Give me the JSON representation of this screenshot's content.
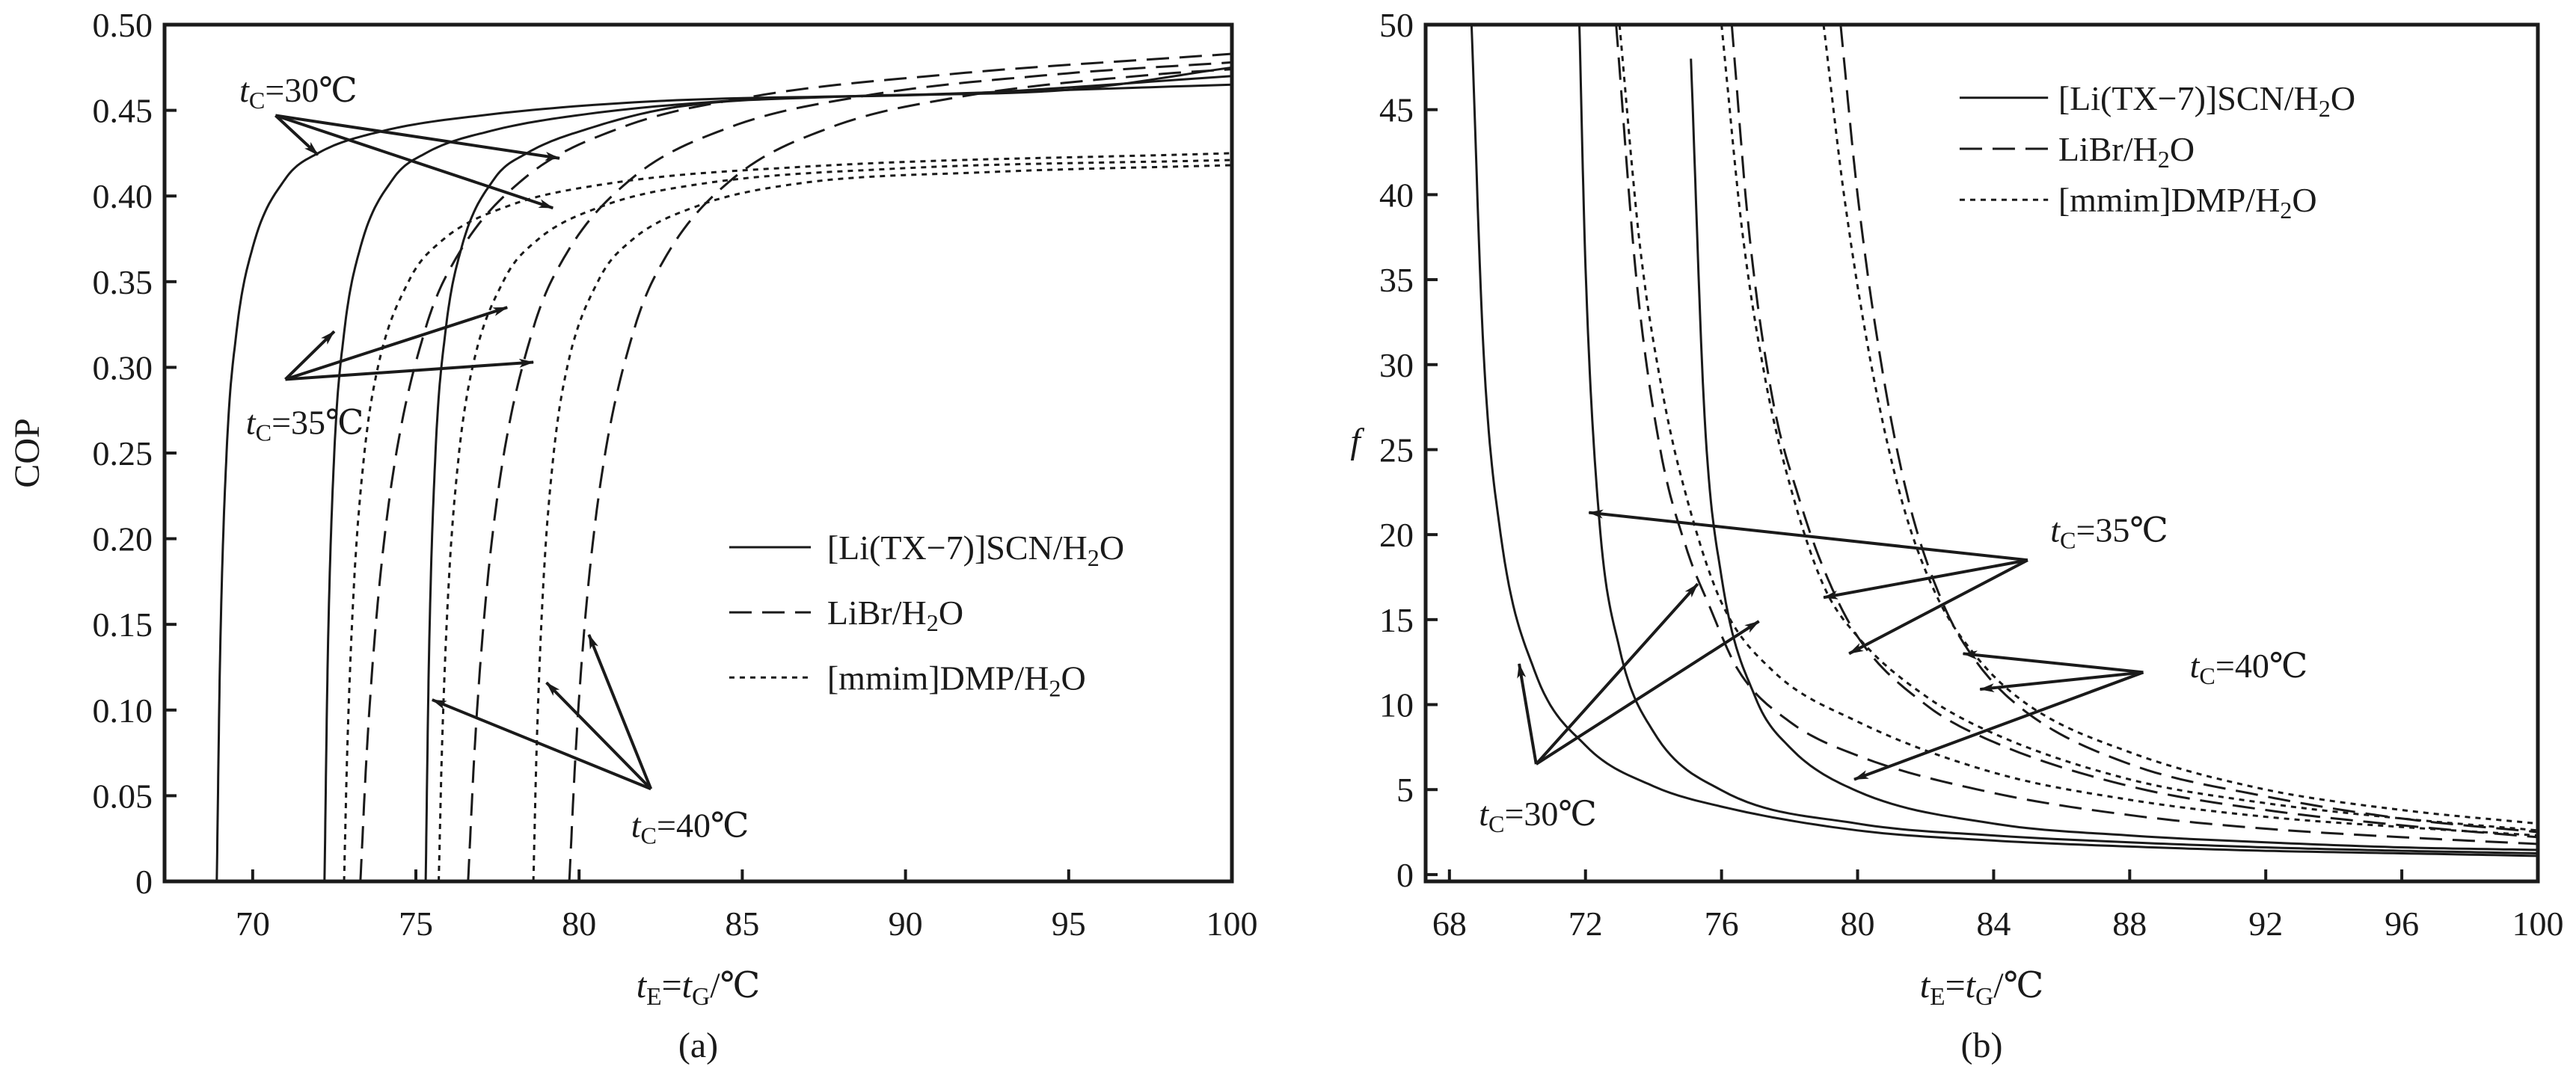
{
  "chart_data": [
    {
      "type": "line",
      "panel_label": "(a)",
      "xlabel": "tE=tG/℃",
      "ylabel": "COP",
      "xlim": [
        67.3,
        100
      ],
      "ylim": [
        0,
        0.5
      ],
      "xticks": [
        70,
        75,
        80,
        85,
        90,
        95,
        100
      ],
      "yticks": [
        0,
        0.05,
        0.1,
        0.15,
        0.2,
        0.25,
        0.3,
        0.35,
        0.4,
        0.45,
        0.5
      ],
      "ytick_labels": [
        "0",
        "0.05",
        "0.10",
        "0.15",
        "0.20",
        "0.25",
        "0.30",
        "0.35",
        "0.40",
        "0.45",
        "0.50"
      ],
      "grid": false,
      "legend_position": "center-right",
      "legend": [
        {
          "label": "[Li(TX−7)]SCN/H2O",
          "style": "solid"
        },
        {
          "label": "LiBr/H2O",
          "style": "dashed"
        },
        {
          "label": "[mmim]DMP/H2O",
          "style": "dotted"
        }
      ],
      "series": [
        {
          "name": "[Li(TX−7)]SCN/H2O tC=30℃",
          "style": "solid",
          "x": [
            68.9,
            69.0,
            69.2,
            69.5,
            70,
            71,
            72,
            74,
            77,
            82,
            90,
            100
          ],
          "y": [
            0,
            0.13,
            0.25,
            0.32,
            0.37,
            0.41,
            0.425,
            0.438,
            0.447,
            0.455,
            0.459,
            0.465
          ]
        },
        {
          "name": "[Li(TX−7)]SCN/H2O tC=35℃",
          "style": "solid",
          "x": [
            72.2,
            72.3,
            72.5,
            72.8,
            73.3,
            74.3,
            75.3,
            77.3,
            80.3,
            85,
            92,
            100
          ],
          "y": [
            0,
            0.13,
            0.25,
            0.32,
            0.37,
            0.41,
            0.425,
            0.438,
            0.448,
            0.456,
            0.46,
            0.47
          ]
        },
        {
          "name": "[Li(TX−7)]SCN/H2O tC=40℃",
          "style": "solid",
          "x": [
            75.3,
            75.4,
            75.6,
            75.9,
            76.4,
            77.4,
            78.4,
            80.4,
            83,
            88,
            95,
            100
          ],
          "y": [
            0,
            0.13,
            0.25,
            0.32,
            0.37,
            0.41,
            0.425,
            0.44,
            0.452,
            0.458,
            0.462,
            0.475
          ]
        },
        {
          "name": "LiBr/H2O tC=30℃",
          "style": "dashed",
          "x": [
            73.3,
            73.5,
            73.8,
            74.3,
            75.3,
            76.3,
            78.3,
            81.3,
            85.3,
            91.3,
            100
          ],
          "y": [
            0,
            0.077,
            0.156,
            0.238,
            0.323,
            0.366,
            0.41,
            0.44,
            0.458,
            0.471,
            0.483
          ]
        },
        {
          "name": "LiBr/H2O tC=35℃",
          "style": "dashed",
          "x": [
            76.6,
            76.8,
            77.1,
            77.6,
            78.6,
            79.6,
            81.6,
            84.6,
            88.6,
            94.6,
            100
          ],
          "y": [
            0,
            0.077,
            0.156,
            0.238,
            0.323,
            0.366,
            0.41,
            0.44,
            0.458,
            0.471,
            0.478
          ]
        },
        {
          "name": "LiBr/H2O tC=40℃",
          "style": "dashed",
          "x": [
            79.7,
            79.9,
            80.2,
            80.7,
            81.7,
            82.7,
            84.7,
            87.7,
            91.7,
            97.7,
            100
          ],
          "y": [
            0,
            0.077,
            0.156,
            0.238,
            0.323,
            0.366,
            0.41,
            0.44,
            0.458,
            0.471,
            0.474
          ]
        },
        {
          "name": "[mmim]DMP/H2O tC=30℃",
          "style": "dotted",
          "x": [
            72.8,
            72.9,
            73.1,
            73.4,
            73.8,
            74.8,
            75.8,
            77.8,
            80.8,
            86.8,
            100
          ],
          "y": [
            0,
            0.078,
            0.172,
            0.246,
            0.297,
            0.351,
            0.374,
            0.394,
            0.407,
            0.417,
            0.425
          ]
        },
        {
          "name": "[mmim]DMP/H2O tC=35℃",
          "style": "dotted",
          "x": [
            75.7,
            75.8,
            76.0,
            76.3,
            76.7,
            77.7,
            78.7,
            80.7,
            83.7,
            89.7,
            100
          ],
          "y": [
            0,
            0.078,
            0.172,
            0.246,
            0.297,
            0.351,
            0.374,
            0.394,
            0.407,
            0.416,
            0.421
          ]
        },
        {
          "name": "[mmim]DMP/H2O tC=40℃",
          "style": "dotted",
          "x": [
            78.6,
            78.7,
            78.9,
            79.2,
            79.6,
            80.6,
            81.6,
            83.6,
            86.6,
            92.6,
            100
          ],
          "y": [
            0,
            0.078,
            0.172,
            0.246,
            0.297,
            0.351,
            0.374,
            0.394,
            0.407,
            0.414,
            0.418
          ]
        }
      ],
      "annotations": [
        {
          "label": "tC=30℃",
          "label_at": [
            71.4,
            0.462
          ],
          "from": [
            70.7,
            0.447
          ],
          "to": [
            [
              72.0,
              0.424
            ],
            [
              79.4,
              0.422
            ],
            [
              79.2,
              0.393
            ]
          ]
        },
        {
          "label": "tC=35℃",
          "label_at": [
            71.6,
            0.268
          ],
          "from": [
            71.0,
            0.293
          ],
          "to": [
            [
              72.5,
              0.321
            ],
            [
              77.8,
              0.335
            ],
            [
              78.6,
              0.303
            ]
          ]
        },
        {
          "label": "tC=40℃",
          "label_at": [
            83.4,
            0.033
          ],
          "from": [
            82.2,
            0.054
          ],
          "to": [
            [
              75.5,
              0.106
            ],
            [
              79.0,
              0.116
            ],
            [
              80.3,
              0.144
            ]
          ]
        }
      ]
    },
    {
      "type": "line",
      "panel_label": "(b)",
      "xlabel": "tE=tG/℃",
      "ylabel": "f",
      "xlim": [
        67.3,
        100
      ],
      "ylim": [
        -0.4,
        50
      ],
      "xticks": [
        68,
        72,
        76,
        80,
        84,
        88,
        92,
        96,
        100
      ],
      "yticks": [
        0,
        5,
        10,
        15,
        20,
        25,
        30,
        35,
        40,
        45,
        50
      ],
      "ytick_labels": [
        "0",
        "5",
        "10",
        "15",
        "20",
        "25",
        "30",
        "35",
        "40",
        "45",
        "50"
      ],
      "grid": false,
      "legend_position": "top-right",
      "legend": [
        {
          "label": "[Li(TX−7)]SCN/H2O",
          "style": "solid"
        },
        {
          "label": "LiBr/H2O",
          "style": "dashed"
        },
        {
          "label": "[mmim]DMP/H2O",
          "style": "dotted"
        }
      ],
      "series": [
        {
          "name": "[Li(TX−7)]SCN/H2O tC=30℃",
          "style": "solid",
          "x": [
            68.65,
            69,
            69.5,
            70.5,
            72,
            74,
            76,
            80,
            84,
            88,
            92,
            96,
            100
          ],
          "y": [
            50,
            30.9,
            20.1,
            12.0,
            7.6,
            5.2,
            4.0,
            2.6,
            2.0,
            1.65,
            1.4,
            1.25,
            1.1
          ]
        },
        {
          "name": "[Li(TX−7)]SCN/H2O tC=35℃",
          "style": "solid",
          "x": [
            71.82,
            72,
            72.4,
            73,
            74,
            76,
            80,
            84,
            88,
            92,
            96,
            100
          ],
          "y": [
            50,
            35.8,
            21,
            13.3,
            8.4,
            4.96,
            3.0,
            2.3,
            1.9,
            1.6,
            1.4,
            1.25
          ]
        },
        {
          "name": "[Li(TX−7)]SCN/H2O tC=40℃",
          "style": "solid",
          "x": [
            75.1,
            75.5,
            76,
            77,
            78,
            80,
            84,
            88,
            92,
            96,
            100
          ],
          "y": [
            48,
            27,
            17.5,
            10.4,
            7.5,
            4.9,
            3.0,
            2.3,
            1.9,
            1.6,
            1.45
          ]
        },
        {
          "name": "LiBr/H2O tC=30℃",
          "style": "dashed",
          "x": [
            72.9,
            73.5,
            74.2,
            75,
            75.6,
            76.5,
            78,
            80,
            84,
            88,
            92,
            96,
            100
          ],
          "y": [
            50,
            35,
            25,
            19,
            16,
            12,
            9,
            7,
            4.8,
            3.5,
            2.7,
            2.2,
            1.8
          ]
        },
        {
          "name": "LiBr/H2O tC=35℃",
          "style": "dashed",
          "x": [
            76.3,
            76.8,
            77.5,
            78.3,
            79,
            80,
            82,
            84,
            88,
            92,
            96,
            100
          ],
          "y": [
            50,
            38,
            28,
            22,
            18,
            14,
            10,
            7.8,
            5.2,
            3.8,
            2.9,
            2.2
          ]
        },
        {
          "name": "LiBr/H2O tC=40℃",
          "style": "dashed",
          "x": [
            79.5,
            80,
            80.7,
            81.5,
            82.5,
            83.5,
            85,
            88,
            92,
            96,
            100
          ],
          "y": [
            50,
            40,
            30,
            22,
            16,
            12.5,
            9.5,
            6.5,
            4.6,
            3.3,
            2.5
          ]
        },
        {
          "name": "[mmim]DMP/H2O tC=30℃",
          "style": "dotted",
          "x": [
            73.0,
            73.6,
            74.3,
            75,
            76,
            77.5,
            80,
            84,
            88,
            92,
            96,
            100
          ],
          "y": [
            50,
            37,
            28,
            22,
            16,
            12,
            9,
            6,
            4.4,
            3.4,
            2.8,
            2.3
          ]
        },
        {
          "name": "[mmim]DMP/H2O tC=35℃",
          "style": "dotted",
          "x": [
            76.0,
            76.6,
            77.3,
            78,
            79,
            80,
            82,
            84,
            88,
            92,
            96,
            100
          ],
          "y": [
            50,
            38,
            29,
            23,
            17,
            14,
            10.5,
            8.3,
            5.6,
            4.2,
            3.3,
            2.6
          ]
        },
        {
          "name": "[mmim]DMP/H2O tC=40℃",
          "style": "dotted",
          "x": [
            79.0,
            79.6,
            80.4,
            81.3,
            82.3,
            83.5,
            85,
            88,
            92,
            96,
            100
          ],
          "y": [
            50,
            40,
            30,
            22,
            16.5,
            12.8,
            10,
            7.2,
            5,
            3.8,
            3.0
          ]
        }
      ],
      "annotations": [
        {
          "label": "tC=30℃",
          "label_at": [
            70.6,
            3.6
          ],
          "from": [
            70.55,
            6.5
          ],
          "to": [
            [
              70.05,
              12.4
            ],
            [
              75.3,
              17.1
            ],
            [
              77.1,
              14.9
            ]
          ]
        },
        {
          "label": "tC=35℃",
          "label_at": [
            87.4,
            20.3
          ],
          "from": [
            85.0,
            18.5
          ],
          "to": [
            [
              72.1,
              21.3
            ],
            [
              79.0,
              16.3
            ],
            [
              79.75,
              13.0
            ]
          ]
        },
        {
          "label": "tC=40℃",
          "label_at": [
            91.5,
            12.3
          ],
          "from": [
            88.4,
            11.9
          ],
          "to": [
            [
              83.1,
              13.0
            ],
            [
              83.6,
              10.9
            ],
            [
              79.9,
              5.6
            ]
          ]
        }
      ]
    }
  ],
  "colors": {
    "ink": "#1a1a1a",
    "background": "#ffffff"
  }
}
